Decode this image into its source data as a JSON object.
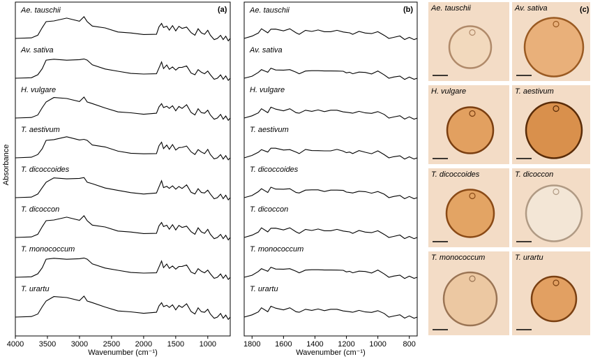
{
  "ylabel": "Absorbance",
  "panels": {
    "a": {
      "label": "(a)"
    },
    "b": {
      "label": "(b)"
    },
    "c": {
      "label": "(c)"
    }
  },
  "species": [
    "Ae. tauschii",
    "Av. sativa",
    "H. vulgare",
    "T. aestivum",
    "T. dicoccoides",
    "T. dicoccon",
    "T. monococcum",
    "T. urartu"
  ],
  "micrograph_labels": [
    "Ae. tauschii",
    "Av. sativa",
    "H. vulgare",
    "T. aestivum",
    "T. dicoccoides",
    "T. dicoccon",
    "T. monococcum",
    "T. urartu"
  ],
  "chart_data": [
    {
      "type": "line",
      "panel": "(a)",
      "xlabel": "Wavenumber (cm⁻¹)",
      "ylabel": "Absorbance",
      "xlim": [
        4000,
        650
      ],
      "xreversed": true,
      "xticks": [
        4000,
        3500,
        3000,
        2500,
        2000,
        1500,
        1000
      ],
      "series_names": [
        "Ae. tauschii",
        "Av. sativa",
        "H. vulgare",
        "T. aestivum",
        "T. dicoccoides",
        "T. dicoccon",
        "T. monococcum",
        "T. urartu"
      ]
    },
    {
      "type": "line",
      "panel": "(b)",
      "xlabel": "Wavenumber (cm⁻¹)",
      "ylabel": "Absorbance",
      "xlim": [
        1850,
        750
      ],
      "xreversed": true,
      "xticks": [
        1800,
        1600,
        1400,
        1200,
        1000,
        800
      ],
      "series_names": [
        "Ae. tauschii",
        "Av. sativa",
        "H. vulgare",
        "T. aestivum",
        "T. dicoccoides",
        "T. dicoccon",
        "T. monococcum",
        "T. urartu"
      ]
    }
  ],
  "colors": {
    "micrograph_bg": "#f3dcc6",
    "pollen_fill": "#e6a862",
    "pollen_edge": "#8a4a16",
    "scale_bar": "#000000"
  }
}
